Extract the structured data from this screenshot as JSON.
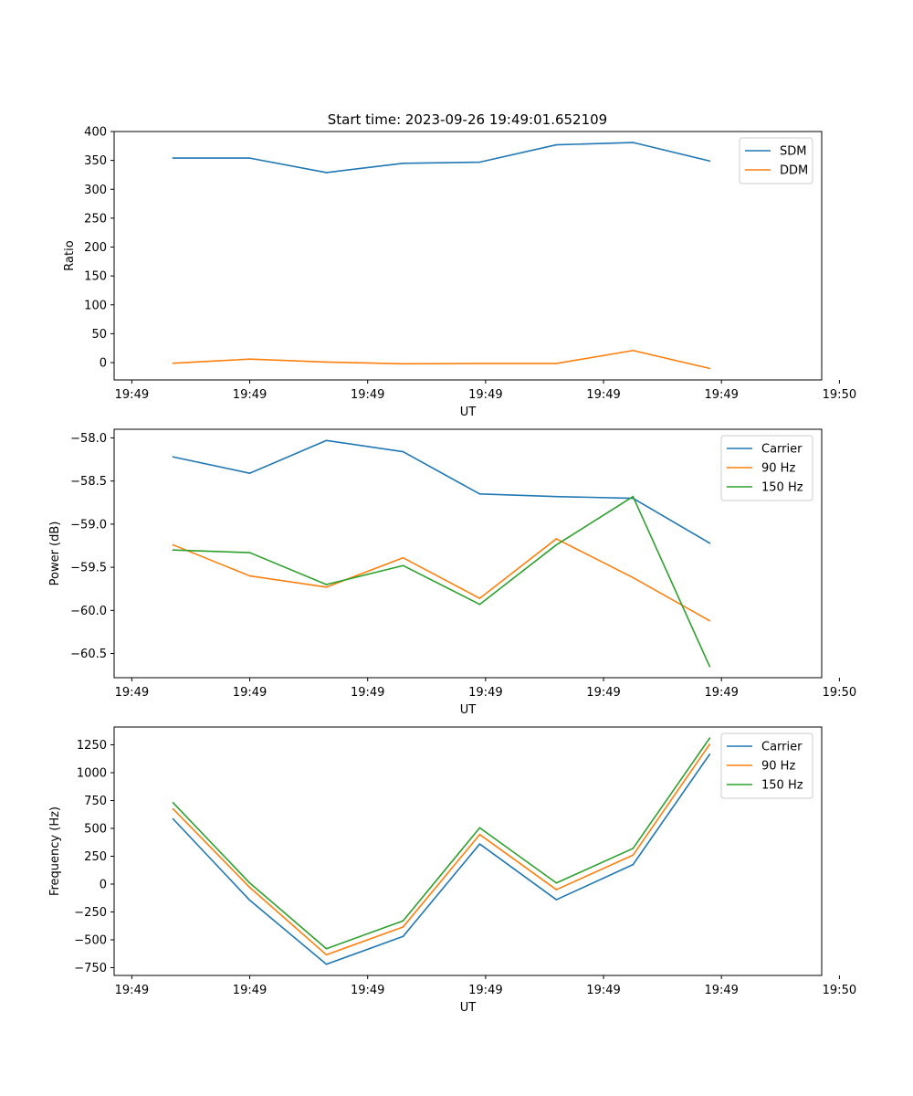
{
  "figure": {
    "title": "Start time: 2023-09-26 19:49:01.652109"
  },
  "colors": {
    "blue": "#1f77b4",
    "orange": "#ff7f0e",
    "green": "#2ca02c"
  },
  "chart_data": [
    {
      "type": "line",
      "title": "Start time: 2023-09-26 19:49:01.652109",
      "xlabel": "UT",
      "ylabel": "Ratio",
      "x": [
        0.5,
        1.15,
        1.8,
        2.45,
        3.1,
        3.75,
        4.4,
        5.05
      ],
      "xlim": [
        0,
        6
      ],
      "xticks": [
        0.15,
        1.15,
        2.15,
        3.15,
        4.15,
        5.15,
        6.15
      ],
      "xtick_labels": [
        "19:49",
        "19:49",
        "19:49",
        "19:49",
        "19:49",
        "19:49",
        "19:50"
      ],
      "ylim": [
        -30,
        400
      ],
      "yticks": [
        0,
        50,
        100,
        150,
        200,
        250,
        300,
        350,
        400
      ],
      "ytick_labels": [
        "0",
        "50",
        "100",
        "150",
        "200",
        "250",
        "300",
        "350",
        "400"
      ],
      "legend_position": "top-right",
      "series": [
        {
          "name": "SDM",
          "color": "#1f77b4",
          "values": [
            354,
            354,
            329,
            345,
            347,
            377,
            381,
            349
          ]
        },
        {
          "name": "DDM",
          "color": "#ff7f0e",
          "values": [
            -1,
            6,
            1,
            -2,
            -1.5,
            -1.5,
            21,
            -10
          ]
        }
      ]
    },
    {
      "type": "line",
      "title": "",
      "xlabel": "UT",
      "ylabel": "Power (dB)",
      "x": [
        0.5,
        1.15,
        1.8,
        2.45,
        3.1,
        3.75,
        4.4,
        5.05
      ],
      "xlim": [
        0,
        6
      ],
      "xticks": [
        0.15,
        1.15,
        2.15,
        3.15,
        4.15,
        5.15,
        6.15
      ],
      "xtick_labels": [
        "19:49",
        "19:49",
        "19:49",
        "19:49",
        "19:49",
        "19:49",
        "19:50"
      ],
      "ylim": [
        -60.78,
        -57.9
      ],
      "yticks": [
        -60.5,
        -60.0,
        -59.5,
        -59.0,
        -58.5,
        -58.0
      ],
      "ytick_labels": [
        "−60.5",
        "−60.0",
        "−59.5",
        "−59.0",
        "−58.5",
        "−58.0"
      ],
      "legend_position": "top-right",
      "series": [
        {
          "name": "Carrier",
          "color": "#1f77b4",
          "values": [
            -58.22,
            -58.41,
            -58.03,
            -58.16,
            -58.65,
            -58.68,
            -58.7,
            -59.22
          ]
        },
        {
          "name": "90 Hz",
          "color": "#ff7f0e",
          "values": [
            -59.24,
            -59.6,
            -59.73,
            -59.39,
            -59.86,
            -59.17,
            -59.62,
            -60.12
          ]
        },
        {
          "name": "150 Hz",
          "color": "#2ca02c",
          "values": [
            -59.3,
            -59.33,
            -59.7,
            -59.48,
            -59.93,
            -59.24,
            -58.68,
            -60.65
          ]
        }
      ]
    },
    {
      "type": "line",
      "title": "",
      "xlabel": "UT",
      "ylabel": "Frequency (Hz)",
      "x": [
        0.5,
        1.15,
        1.8,
        2.45,
        3.1,
        3.75,
        4.4,
        5.05
      ],
      "xlim": [
        0,
        6
      ],
      "xticks": [
        0.15,
        1.15,
        2.15,
        3.15,
        4.15,
        5.15,
        6.15
      ],
      "xtick_labels": [
        "19:49",
        "19:49",
        "19:49",
        "19:49",
        "19:49",
        "19:49",
        "19:50"
      ],
      "ylim": [
        -820,
        1410
      ],
      "yticks": [
        -750,
        -500,
        -250,
        0,
        250,
        500,
        750,
        1000,
        1250
      ],
      "ytick_labels": [
        "−750",
        "−500",
        "−250",
        "0",
        "250",
        "500",
        "750",
        "1000",
        "1250"
      ],
      "legend_position": "top-right",
      "series": [
        {
          "name": "Carrier",
          "color": "#1f77b4",
          "values": [
            585,
            -145,
            -720,
            -470,
            360,
            -140,
            175,
            1165
          ]
        },
        {
          "name": "90 Hz",
          "color": "#ff7f0e",
          "values": [
            675,
            -30,
            -635,
            -385,
            445,
            -50,
            260,
            1255
          ]
        },
        {
          "name": "150 Hz",
          "color": "#2ca02c",
          "values": [
            730,
            10,
            -580,
            -330,
            505,
            10,
            320,
            1310
          ]
        }
      ]
    }
  ]
}
